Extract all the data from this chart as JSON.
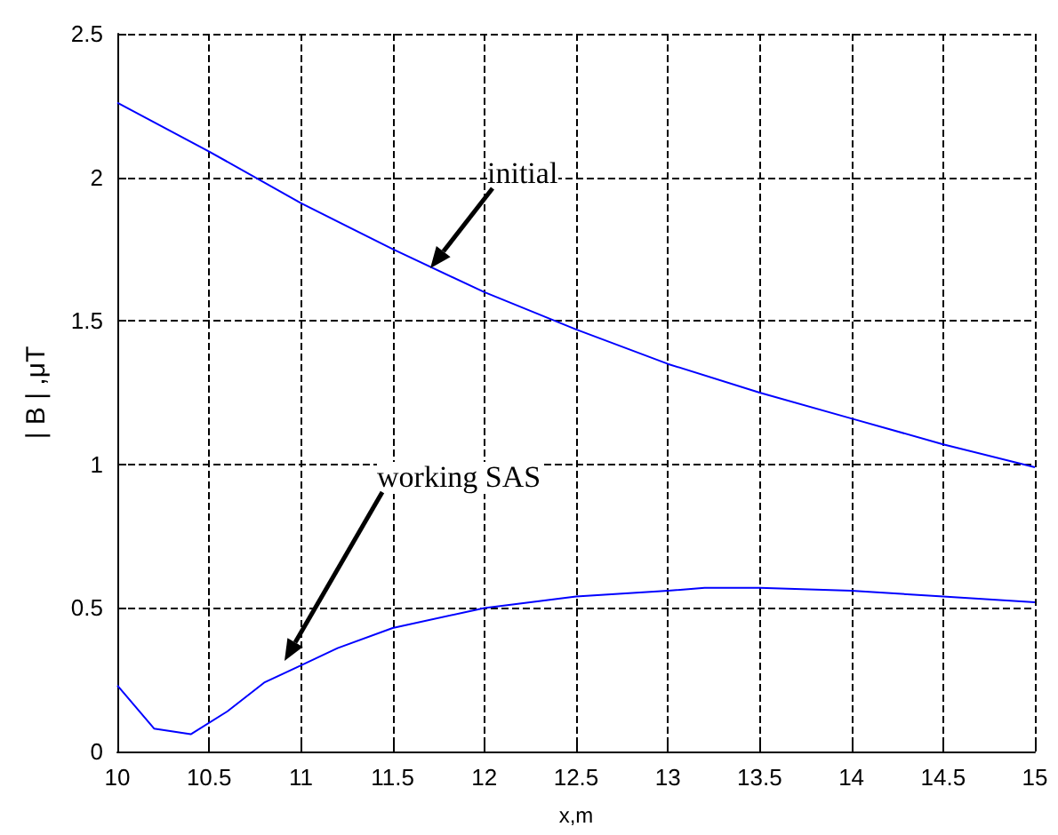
{
  "chart_data": {
    "type": "line",
    "xlabel": "x,m",
    "ylabel": "| B | ,μT",
    "xlim": [
      10,
      15
    ],
    "xticks": [
      10,
      10.5,
      11,
      11.5,
      12,
      12.5,
      13,
      13.5,
      14,
      14.5,
      15
    ],
    "ylim": [
      0,
      2.5
    ],
    "yticks": [
      0,
      0.5,
      1,
      1.5,
      2,
      2.5
    ],
    "grid": true,
    "marker": "none",
    "line_style": "solid",
    "series": [
      {
        "color": "#0000ff",
        "x": [
          10,
          10.5,
          11,
          11.5,
          12,
          12.5,
          13,
          13.5,
          14,
          14.5,
          15
        ],
        "values": [
          2.26,
          2.09,
          1.91,
          1.75,
          1.6,
          1.47,
          1.35,
          1.25,
          1.16,
          1.07,
          0.99
        ]
      },
      {
        "color": "#0000ff",
        "x": [
          10,
          10.2,
          10.4,
          10.6,
          10.8,
          11,
          11.2,
          11.5,
          12,
          12.5,
          13,
          13.2,
          13.5,
          14,
          14.5,
          15
        ],
        "values": [
          0.23,
          0.08,
          0.06,
          0.14,
          0.24,
          0.3,
          0.36,
          0.43,
          0.5,
          0.54,
          0.56,
          0.57,
          0.57,
          0.56,
          0.54,
          0.52
        ]
      }
    ],
    "annotations": [
      "initial",
      "working SAS"
    ]
  }
}
